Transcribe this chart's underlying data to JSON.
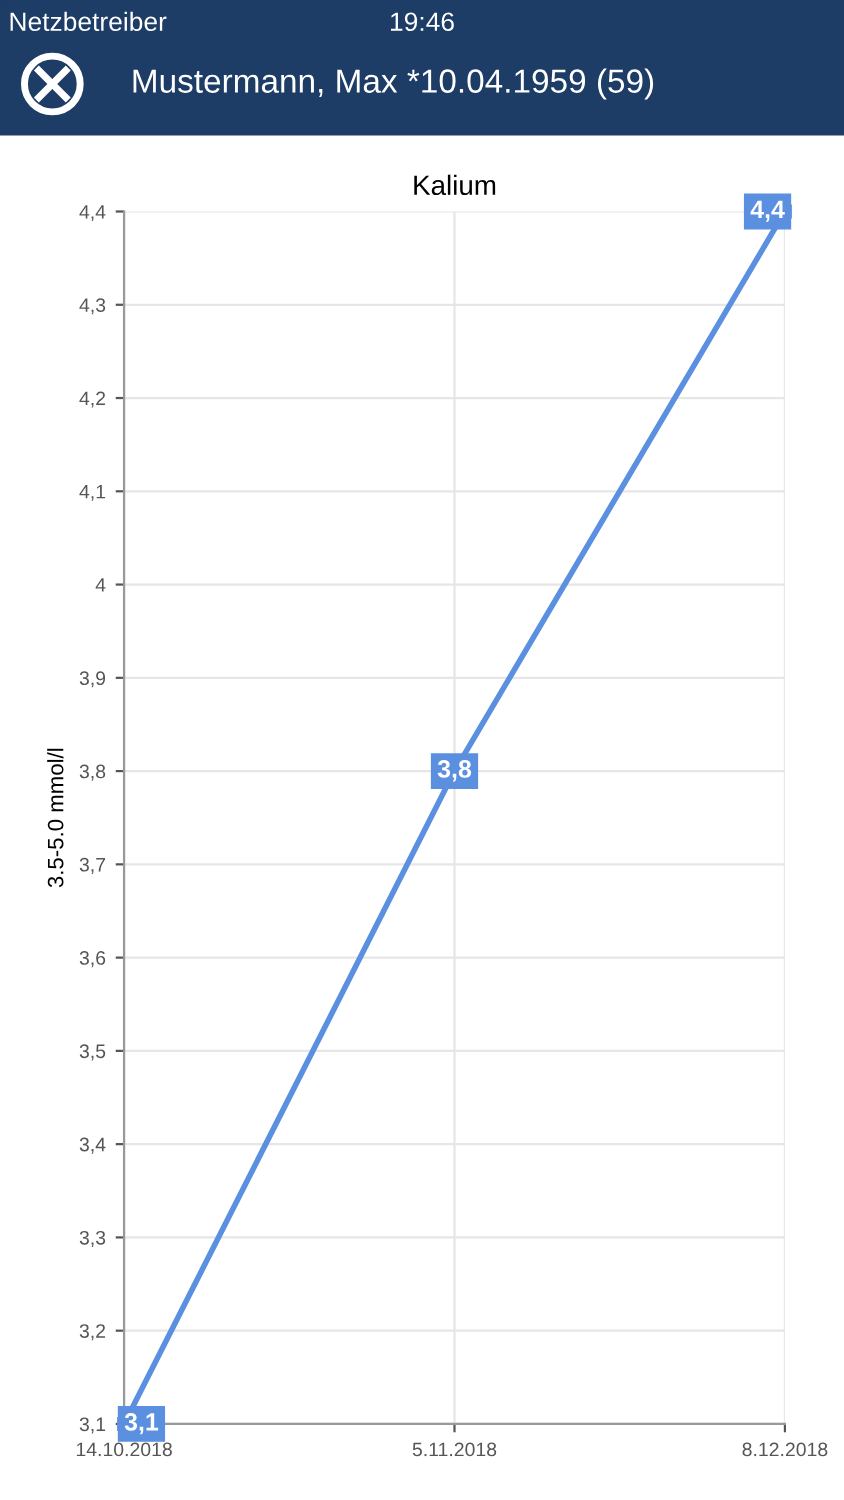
{
  "chart_data": {
    "type": "line",
    "title": "Kalium",
    "ylabel": "3.5-5.0 mmol/l",
    "annotations": [
      "Netzbetreiber",
      "19:46",
      "Mustermann, Max *10.04.1959 (59)"
    ],
    "categories": [
      "14.10.2018",
      "5.11.2018",
      "8.12.2018"
    ],
    "series": [
      {
        "color": "#5b8fe0",
        "values": [
          3.1,
          3.8,
          4.4
        ],
        "value_labels": [
          "3,1",
          "3,8",
          "4,4"
        ]
      }
    ],
    "ylim": [
      3.1,
      4.4
    ],
    "yticks": [
      {
        "value": 3.1,
        "label": "3,1"
      },
      {
        "value": 3.2,
        "label": "3,2"
      },
      {
        "value": 3.3,
        "label": "3,3"
      },
      {
        "value": 3.4,
        "label": "3,4"
      },
      {
        "value": 3.5,
        "label": "3,5"
      },
      {
        "value": 3.6,
        "label": "3,6"
      },
      {
        "value": 3.7,
        "label": "3,7"
      },
      {
        "value": 3.8,
        "label": "3,8"
      },
      {
        "value": 3.9,
        "label": "3,9"
      },
      {
        "value": 4.0,
        "label": "4"
      },
      {
        "value": 4.1,
        "label": "4,1"
      },
      {
        "value": 4.2,
        "label": "4,2"
      },
      {
        "value": 4.3,
        "label": "4,3"
      },
      {
        "value": 4.4,
        "label": "4,4"
      }
    ],
    "grid": true,
    "marker": "square",
    "line_style": "solid",
    "legend": false
  }
}
